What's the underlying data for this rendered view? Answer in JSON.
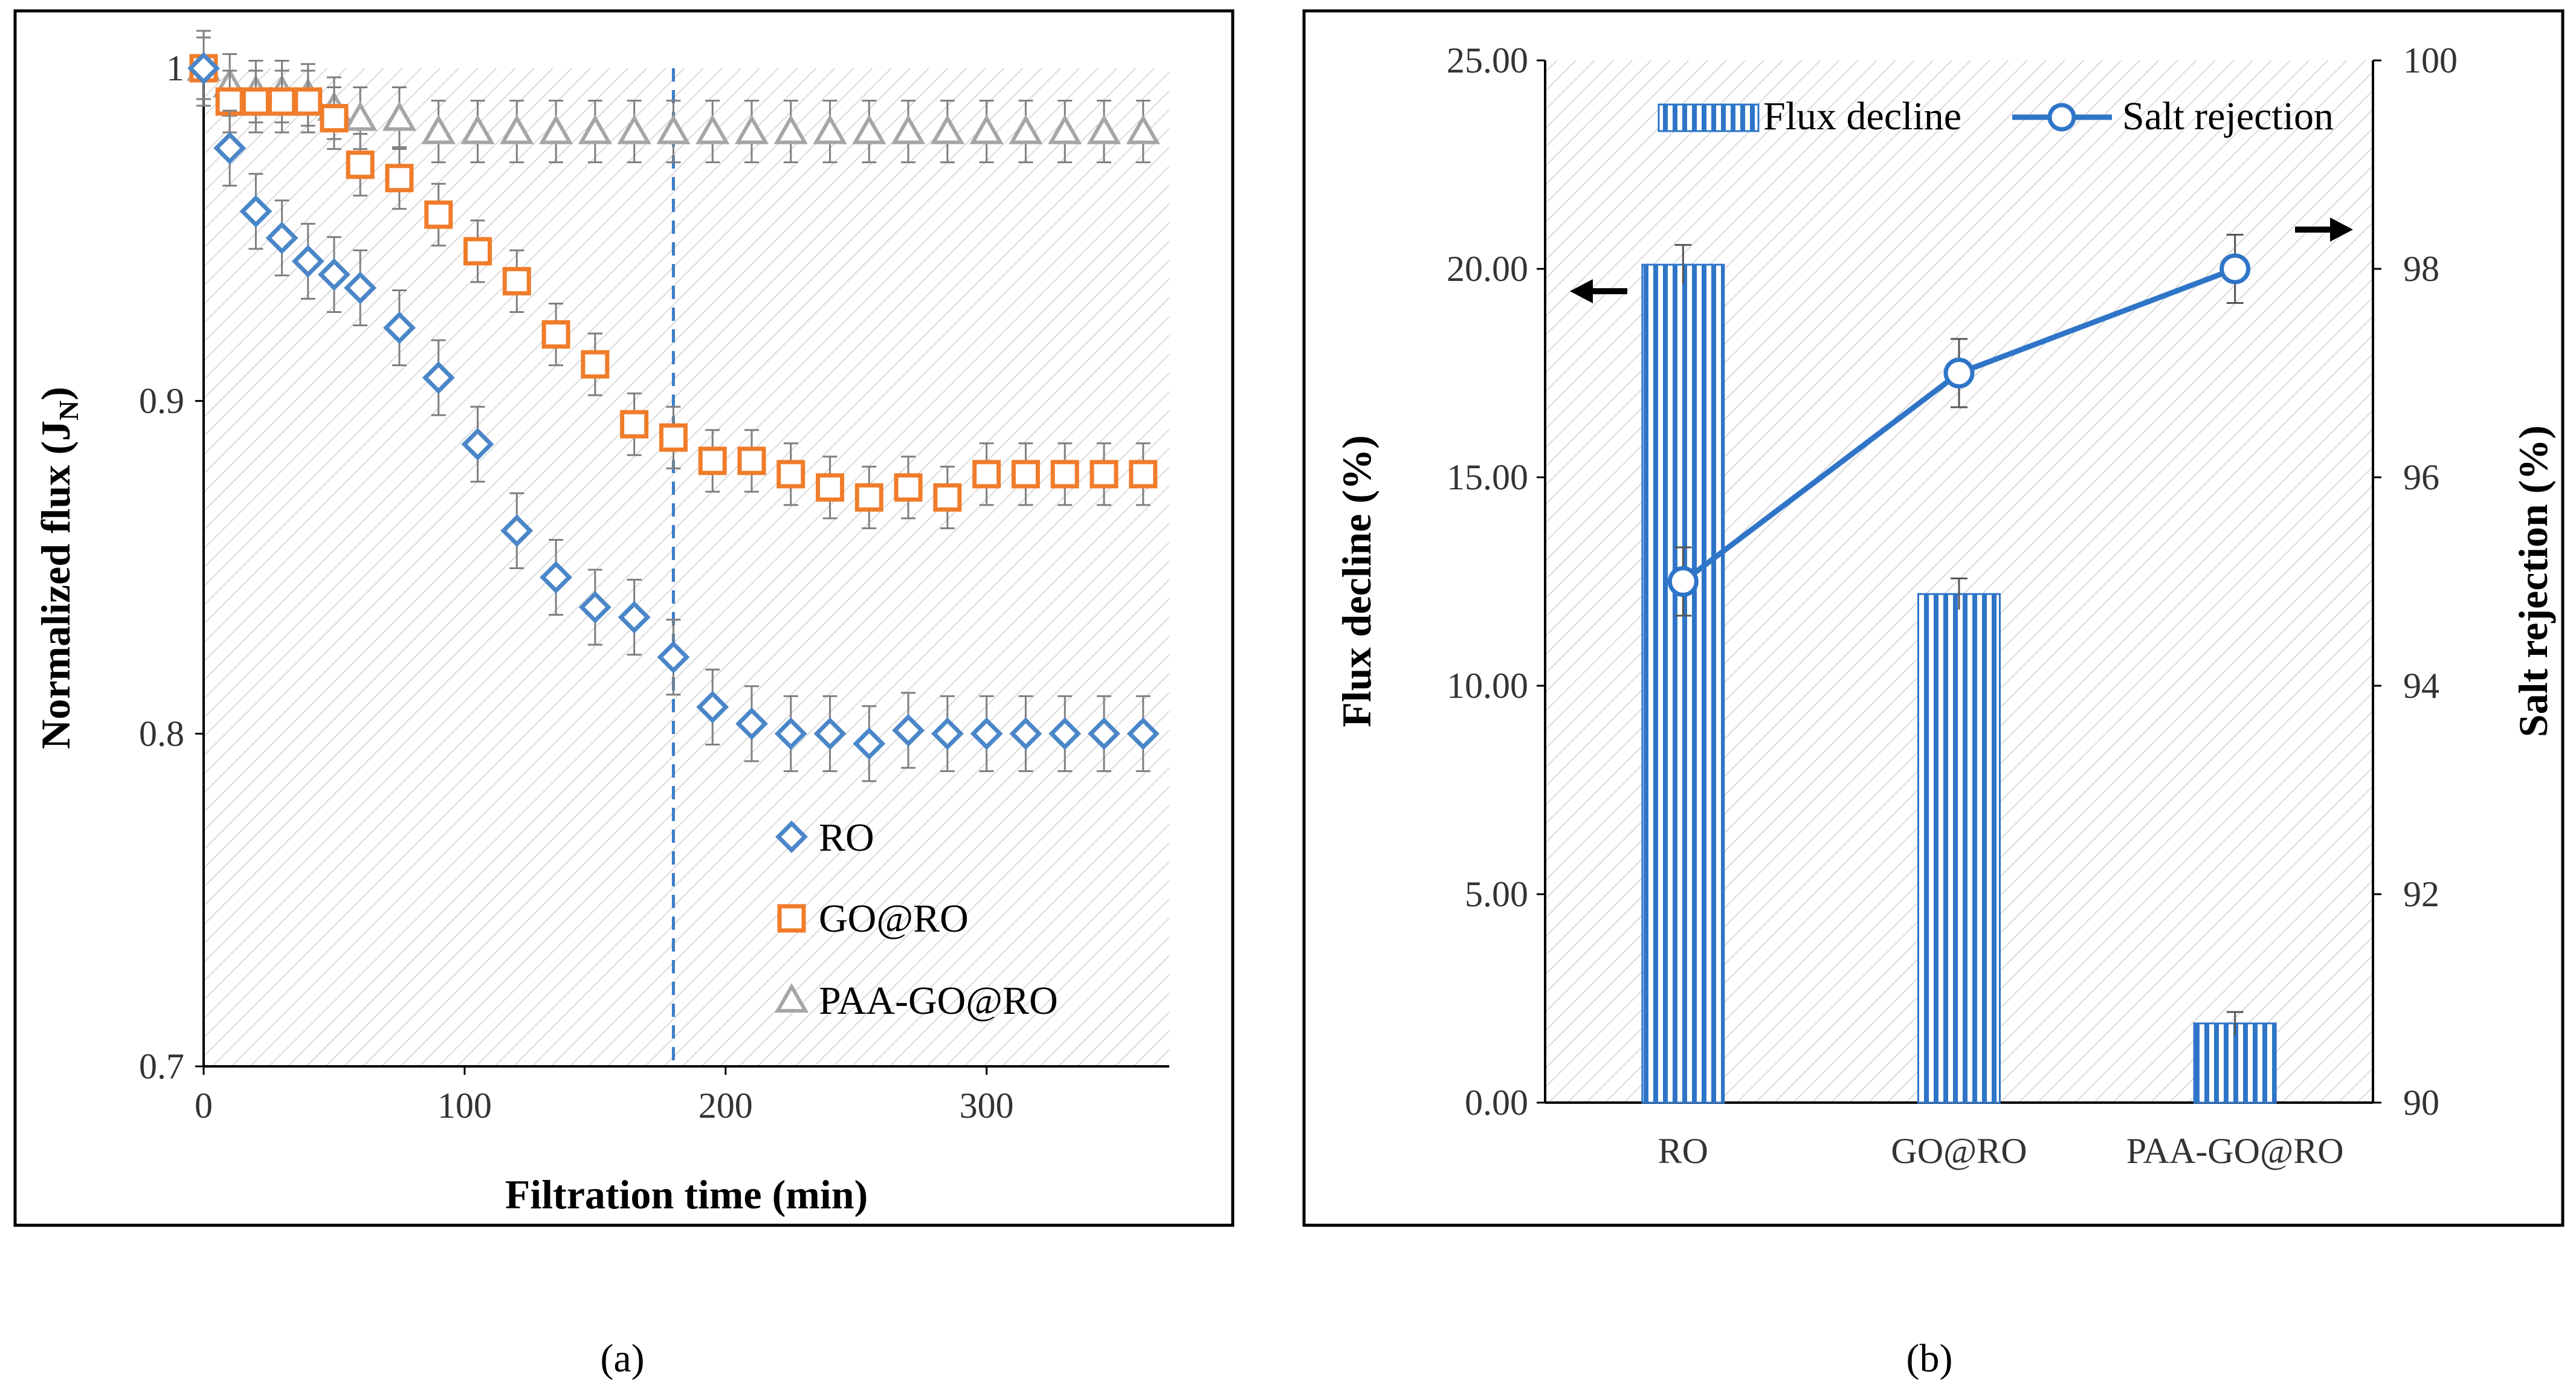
{
  "chart_data": [
    {
      "type": "scatter",
      "panel": "(a)",
      "xlabel": "Filtration time (min)",
      "ylabel_main": "Normalized flux (J",
      "ylabel_sub": "N",
      "ylabel_close": ")",
      "xlim": [
        0,
        370
      ],
      "ylim": [
        0.7,
        1.0
      ],
      "xticks": [
        0,
        100,
        200,
        300
      ],
      "yticks": [
        0.7,
        0.8,
        0.9,
        1.0
      ],
      "ytick_labels": [
        "0.7",
        "0.8",
        "0.9",
        "1"
      ],
      "vline_x": 180,
      "legend_position": "bottom-right",
      "series": [
        {
          "name": "RO",
          "marker": "diamond",
          "color": "#4a86c8",
          "x": [
            0,
            10,
            20,
            30,
            40,
            50,
            60,
            75,
            90,
            105,
            120,
            135,
            150,
            165,
            180,
            195,
            210,
            225,
            240,
            255,
            270,
            285,
            300,
            315,
            330,
            345,
            360
          ],
          "y": [
            1.0,
            0.976,
            0.957,
            0.949,
            0.942,
            0.938,
            0.934,
            0.922,
            0.907,
            0.887,
            0.861,
            0.847,
            0.838,
            0.835,
            0.823,
            0.808,
            0.803,
            0.8,
            0.8,
            0.797,
            0.801,
            0.8,
            0.8,
            0.8,
            0.8,
            0.8,
            0.8
          ],
          "err": 0.008
        },
        {
          "name": "GO@RO",
          "marker": "square",
          "color": "#f07c2a",
          "x": [
            0,
            10,
            20,
            30,
            40,
            50,
            60,
            75,
            90,
            105,
            120,
            135,
            150,
            165,
            180,
            195,
            210,
            225,
            240,
            255,
            270,
            285,
            300,
            315,
            330,
            345,
            360
          ],
          "y": [
            1.0,
            0.99,
            0.99,
            0.99,
            0.99,
            0.985,
            0.971,
            0.967,
            0.956,
            0.945,
            0.936,
            0.92,
            0.911,
            0.893,
            0.889,
            0.882,
            0.882,
            0.878,
            0.874,
            0.871,
            0.874,
            0.871,
            0.878,
            0.878,
            0.878,
            0.878,
            0.878
          ],
          "err": 0.006
        },
        {
          "name": "PAA-GO@RO",
          "marker": "triangle",
          "color": "#a6a6a6",
          "x": [
            0,
            10,
            20,
            30,
            40,
            50,
            60,
            75,
            90,
            105,
            120,
            135,
            150,
            165,
            180,
            195,
            210,
            225,
            240,
            255,
            270,
            285,
            300,
            315,
            330,
            345,
            360
          ],
          "y": [
            1.0,
            0.995,
            0.993,
            0.993,
            0.992,
            0.988,
            0.985,
            0.985,
            0.981,
            0.981,
            0.981,
            0.981,
            0.981,
            0.981,
            0.981,
            0.981,
            0.981,
            0.981,
            0.981,
            0.981,
            0.981,
            0.981,
            0.981,
            0.981,
            0.981,
            0.981,
            0.981
          ],
          "err": 0.006
        }
      ]
    },
    {
      "type": "bar",
      "panel": "(b)",
      "categories": [
        "RO",
        "GO@RO",
        "PAA-GO@RO"
      ],
      "ylabel_left": "Flux decline (%)",
      "ylabel_right": "Salt rejection (%)",
      "ylim_left": [
        0,
        25
      ],
      "ylim_right": [
        90,
        100
      ],
      "yticks_left": [
        "0.00",
        "5.00",
        "10.00",
        "15.00",
        "20.00",
        "25.00"
      ],
      "yticks_right": [
        "90",
        "92",
        "94",
        "96",
        "98",
        "100"
      ],
      "legend_position": "top",
      "series": [
        {
          "name": "Flux decline",
          "kind": "bar",
          "axis": "left",
          "color": "#2e75c8",
          "values": [
            20.1,
            12.2,
            1.9
          ],
          "err": [
            0.3,
            0.2,
            0.1
          ]
        },
        {
          "name": "Salt rejection",
          "kind": "line",
          "axis": "right",
          "color": "#2e75c8",
          "values": [
            95.0,
            97.0,
            98.0
          ],
          "err": [
            0.2,
            0.2,
            0.2
          ]
        }
      ]
    }
  ]
}
